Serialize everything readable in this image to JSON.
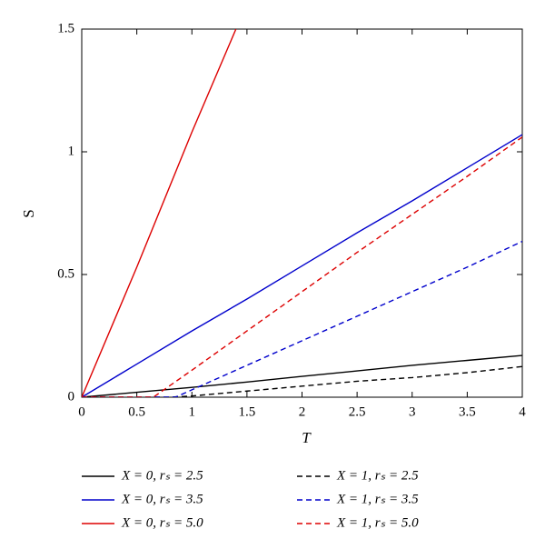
{
  "chart_data": {
    "type": "line",
    "xlabel": "T",
    "ylabel": "S",
    "xlim": [
      0,
      4
    ],
    "ylim": [
      0,
      1.5
    ],
    "xticks": [
      0,
      0.5,
      1,
      1.5,
      2,
      2.5,
      3,
      3.5,
      4
    ],
    "yticks": [
      0,
      0.5,
      1,
      1.5
    ],
    "series": [
      {
        "name": "X = 0, rₛ = 2.5",
        "color": "#000000",
        "dash": false,
        "x": [
          0,
          0.5,
          1,
          1.5,
          2,
          2.5,
          3,
          3.5,
          4
        ],
        "values": [
          0,
          0.02,
          0.04,
          0.062,
          0.085,
          0.107,
          0.13,
          0.15,
          0.17
        ]
      },
      {
        "name": "X = 0, rₛ = 3.5",
        "color": "#0000cc",
        "dash": false,
        "x": [
          0,
          0.5,
          1,
          1.5,
          2,
          2.5,
          3,
          3.5,
          4
        ],
        "values": [
          0,
          0.135,
          0.27,
          0.4,
          0.535,
          0.67,
          0.8,
          0.935,
          1.07
        ]
      },
      {
        "name": "X = 0, rₛ = 5.0",
        "color": "#dd0000",
        "dash": false,
        "x": [
          0,
          0.5,
          1,
          1.4
        ],
        "values": [
          0,
          0.53,
          1.08,
          1.5
        ]
      },
      {
        "name": "X = 1, rₛ = 2.5",
        "color": "#000000",
        "dash": true,
        "x": [
          0,
          0.5,
          0.8,
          1,
          1.5,
          2,
          2.5,
          3,
          3.5,
          4
        ],
        "values": [
          0,
          0,
          0,
          0.005,
          0.025,
          0.045,
          0.065,
          0.08,
          0.1,
          0.125
        ]
      },
      {
        "name": "X = 1, rₛ = 3.5",
        "color": "#0000cc",
        "dash": true,
        "x": [
          0,
          0.85,
          1,
          1.5,
          2,
          2.5,
          3,
          3.5,
          4
        ],
        "values": [
          0,
          0,
          0.03,
          0.13,
          0.23,
          0.33,
          0.43,
          0.53,
          0.635
        ]
      },
      {
        "name": "X = 1, rₛ = 5.0",
        "color": "#dd0000",
        "dash": true,
        "x": [
          0,
          0.65,
          1,
          1.5,
          2,
          2.5,
          3,
          3.5,
          4
        ],
        "values": [
          0,
          0,
          0.11,
          0.27,
          0.43,
          0.59,
          0.745,
          0.9,
          1.06
        ]
      }
    ]
  }
}
